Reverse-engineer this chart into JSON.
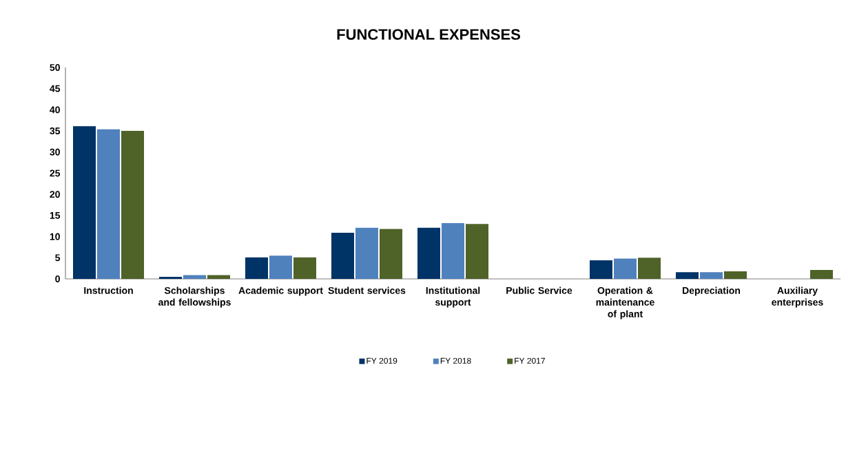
{
  "chart_data": {
    "type": "bar",
    "title": "FUNCTIONAL EXPENSES",
    "categories": [
      "Instruction",
      "Scholarships and fellowships",
      "Academic support",
      "Student services",
      "Institutional support",
      "Public Service",
      "Operation & maintenance of plant",
      "Depreciation",
      "Auxiliary enterprises"
    ],
    "series": [
      {
        "name": "FY 2019",
        "color": "#003366",
        "values": [
          36.1,
          0.5,
          5.1,
          10.9,
          12.1,
          0,
          4.4,
          1.6,
          0
        ]
      },
      {
        "name": "FY 2018",
        "color": "#4f81bd",
        "values": [
          35.4,
          0.9,
          5.5,
          12.1,
          13.2,
          0,
          4.8,
          1.6,
          0
        ]
      },
      {
        "name": "FY 2017",
        "color": "#4f6228",
        "values": [
          35.0,
          0.9,
          5.1,
          11.8,
          13.0,
          0,
          5.0,
          1.8,
          2.1
        ]
      }
    ],
    "ylim": [
      0,
      50
    ],
    "yticks": [
      0,
      5,
      10,
      15,
      20,
      25,
      30,
      35,
      40,
      45,
      50
    ],
    "grid": false,
    "legend": "bottom"
  }
}
